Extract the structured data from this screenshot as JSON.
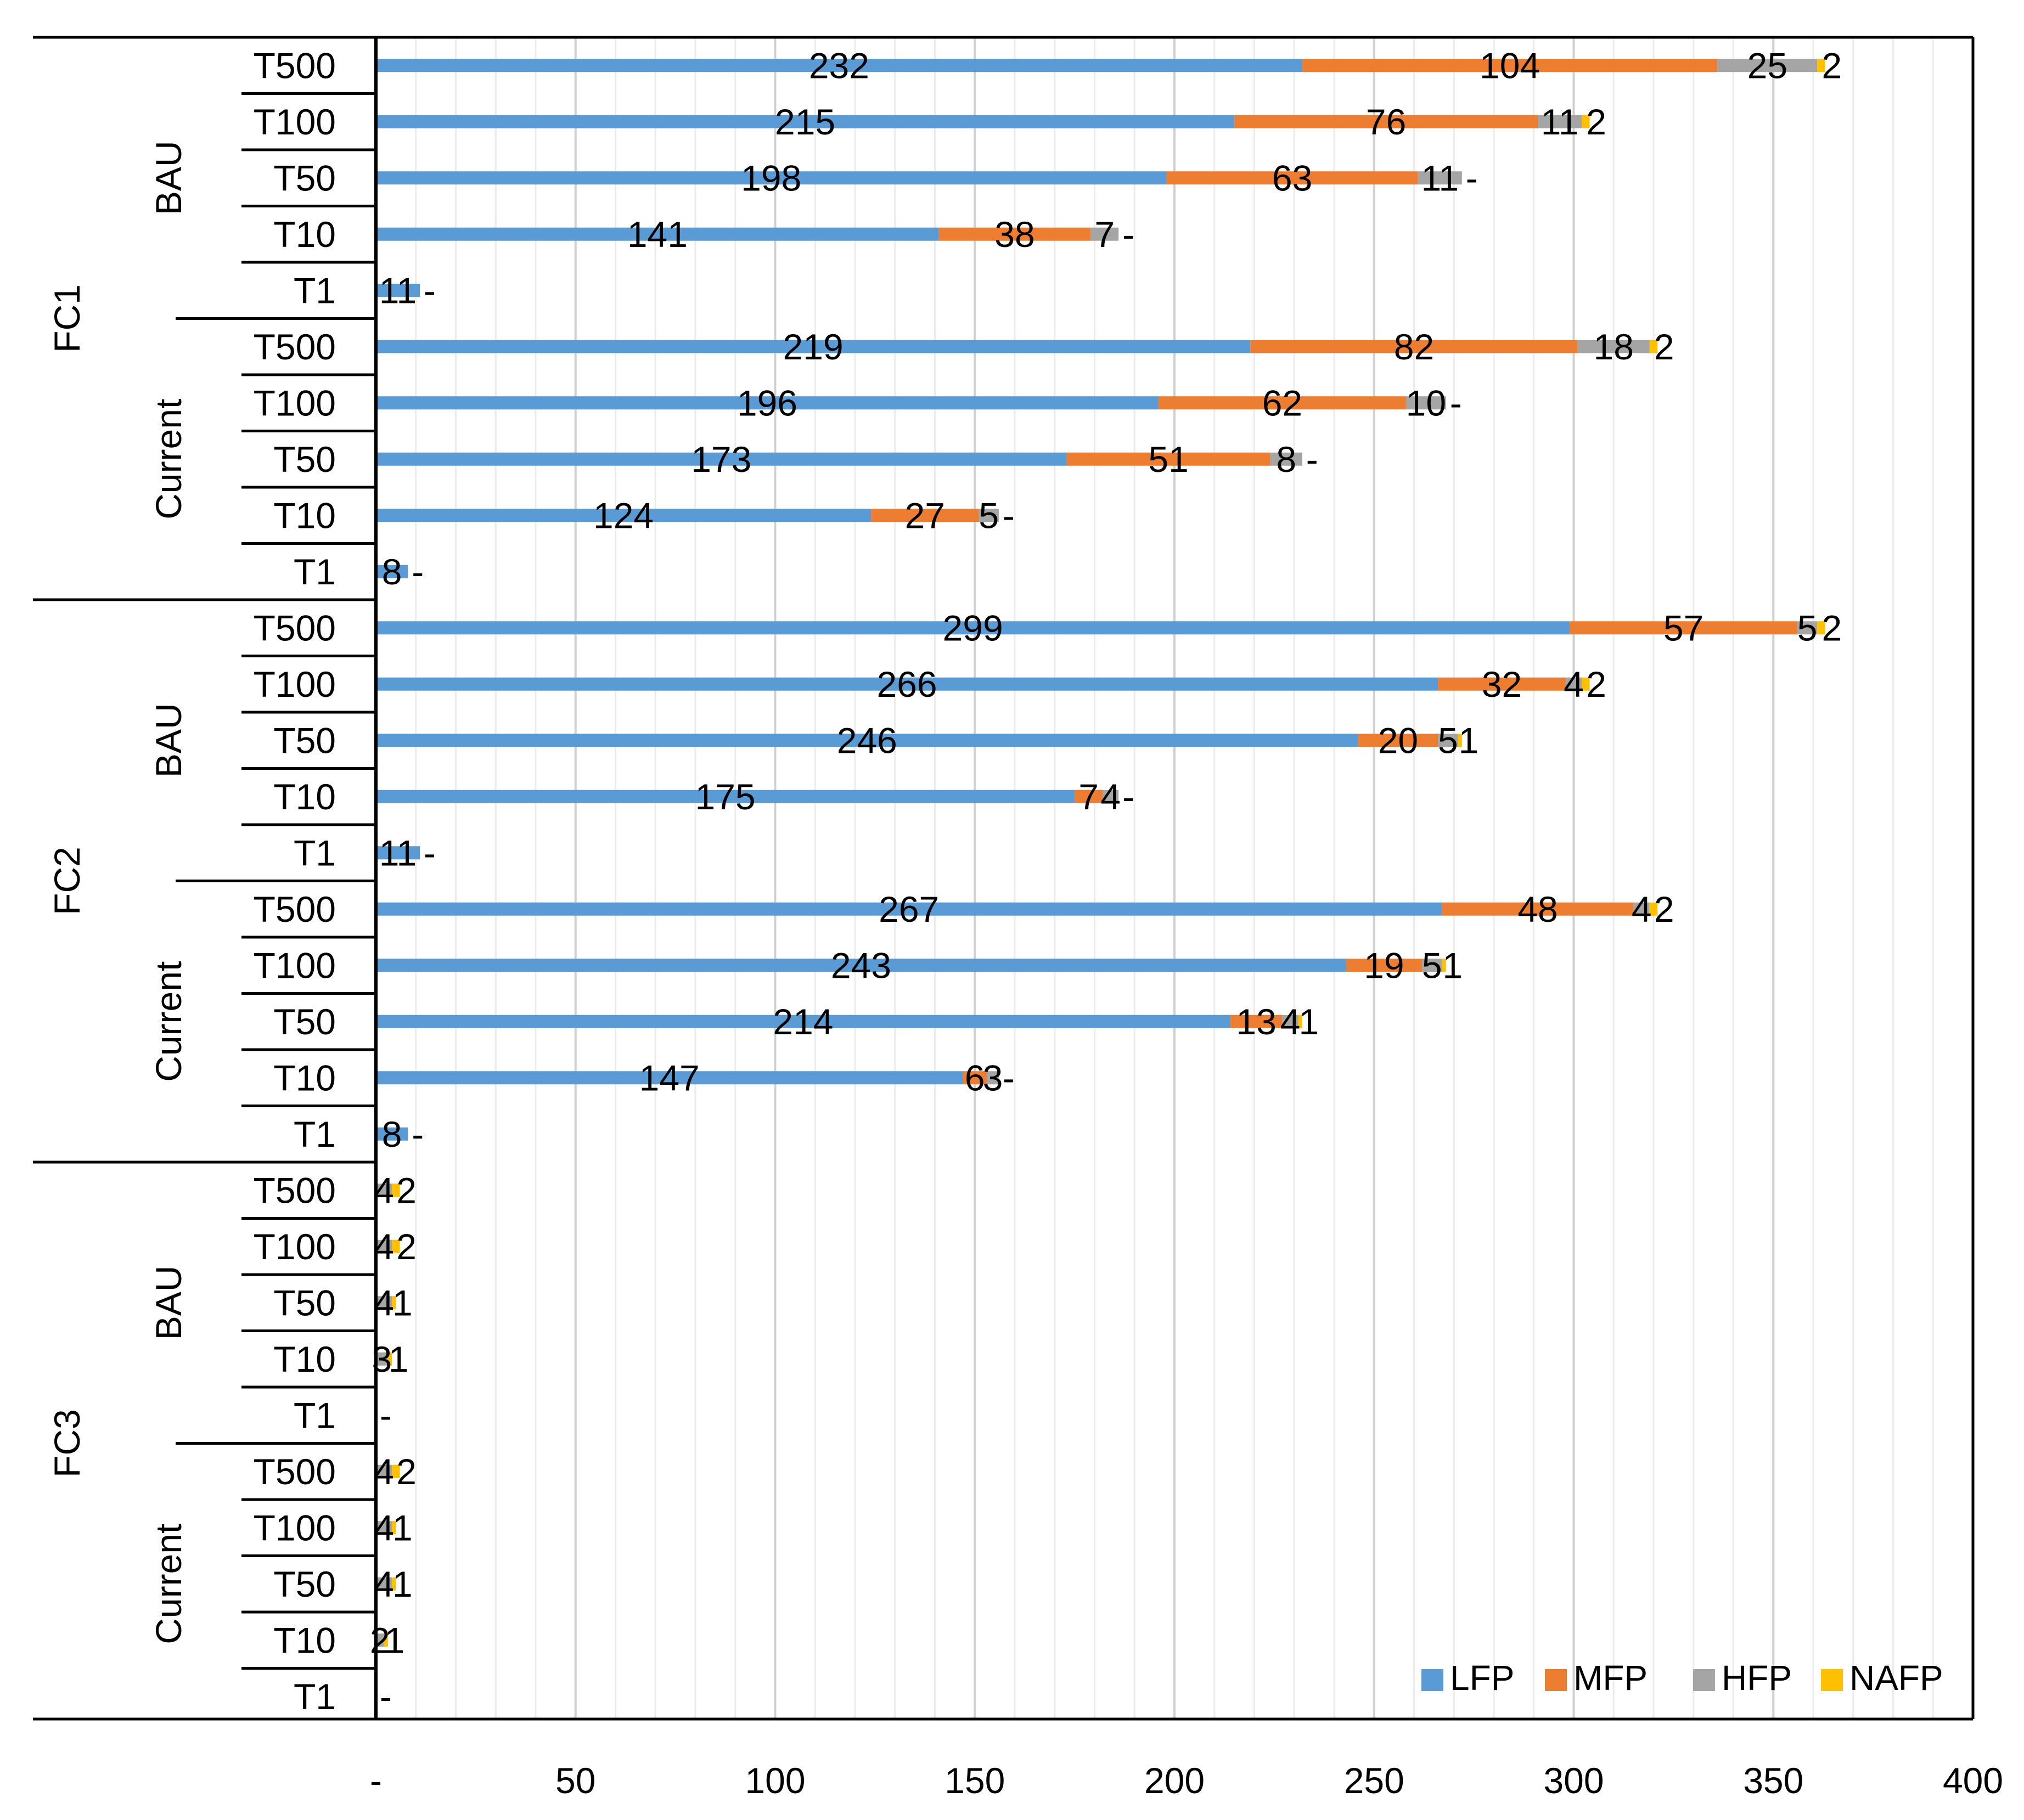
{
  "chart_data": {
    "type": "bar",
    "orientation": "horizontal",
    "stacked": true,
    "title": "",
    "xlabel": "",
    "ylabel": "",
    "xlim": [
      0,
      400
    ],
    "x_ticks": [
      "-",
      "50",
      "100",
      "150",
      "200",
      "250",
      "300",
      "350",
      "400"
    ],
    "x_tick_values": [
      0,
      50,
      100,
      150,
      200,
      250,
      300,
      350,
      400
    ],
    "grid": "vertical",
    "legend_position": "bottom-right",
    "series": [
      {
        "name": "LFP",
        "color": "#5B9BD5"
      },
      {
        "name": "MFP",
        "color": "#ED7D31"
      },
      {
        "name": "HFP",
        "color": "#A5A5A5"
      },
      {
        "name": "NAFP",
        "color": "#FFC000"
      }
    ],
    "groups": [
      {
        "name": "FC1",
        "subgroups": [
          {
            "name": "BAU",
            "rows": [
              {
                "label": "T500",
                "values": [
                  232,
                  104,
                  25,
                  2
                ],
                "labels": [
                  "232",
                  "104",
                  "25",
                  "2"
                ]
              },
              {
                "label": "T100",
                "values": [
                  215,
                  76,
                  11,
                  2
                ],
                "labels": [
                  "215",
                  "76",
                  "11",
                  "2"
                ]
              },
              {
                "label": "T50",
                "values": [
                  198,
                  63,
                  11,
                  0
                ],
                "labels": [
                  "198",
                  "63",
                  "11",
                  "-"
                ]
              },
              {
                "label": "T10",
                "values": [
                  141,
                  38,
                  7,
                  0
                ],
                "labels": [
                  "141",
                  "38",
                  "7",
                  "-"
                ]
              },
              {
                "label": "T1",
                "values": [
                  11,
                  0,
                  0,
                  0
                ],
                "labels": [
                  "11",
                  "",
                  "",
                  "-"
                ]
              }
            ]
          },
          {
            "name": "Current",
            "rows": [
              {
                "label": "T500",
                "values": [
                  219,
                  82,
                  18,
                  2
                ],
                "labels": [
                  "219",
                  "82",
                  "18",
                  "2"
                ]
              },
              {
                "label": "T100",
                "values": [
                  196,
                  62,
                  10,
                  0
                ],
                "labels": [
                  "196",
                  "62",
                  "10",
                  "-"
                ]
              },
              {
                "label": "T50",
                "values": [
                  173,
                  51,
                  8,
                  0
                ],
                "labels": [
                  "173",
                  "51",
                  "8",
                  "-"
                ]
              },
              {
                "label": "T10",
                "values": [
                  124,
                  27,
                  5,
                  0
                ],
                "labels": [
                  "124",
                  "27",
                  "5",
                  "-"
                ]
              },
              {
                "label": "T1",
                "values": [
                  8,
                  0,
                  0,
                  0
                ],
                "labels": [
                  "8",
                  "",
                  "",
                  "-"
                ]
              }
            ]
          }
        ]
      },
      {
        "name": "FC2",
        "subgroups": [
          {
            "name": "BAU",
            "rows": [
              {
                "label": "T500",
                "values": [
                  299,
                  57,
                  5,
                  2
                ],
                "labels": [
                  "299",
                  "57",
                  "5",
                  "2"
                ]
              },
              {
                "label": "T100",
                "values": [
                  266,
                  32,
                  4,
                  2
                ],
                "labels": [
                  "266",
                  "32",
                  "4",
                  "2"
                ]
              },
              {
                "label": "T50",
                "values": [
                  246,
                  20,
                  5,
                  1
                ],
                "labels": [
                  "246",
                  "20",
                  "5",
                  "1"
                ]
              },
              {
                "label": "T10",
                "values": [
                  175,
                  7,
                  4,
                  0
                ],
                "labels": [
                  "175",
                  "7",
                  "4",
                  "-"
                ]
              },
              {
                "label": "T1",
                "values": [
                  11,
                  0,
                  0,
                  0
                ],
                "labels": [
                  "11",
                  "",
                  "",
                  "-"
                ]
              }
            ]
          },
          {
            "name": "Current",
            "rows": [
              {
                "label": "T500",
                "values": [
                  267,
                  48,
                  4,
                  2
                ],
                "labels": [
                  "267",
                  "48",
                  "4",
                  "2"
                ]
              },
              {
                "label": "T100",
                "values": [
                  243,
                  19,
                  5,
                  1
                ],
                "labels": [
                  "243",
                  "19",
                  "5",
                  "1"
                ]
              },
              {
                "label": "T50",
                "values": [
                  214,
                  13,
                  4,
                  1
                ],
                "labels": [
                  "214",
                  "13",
                  "4",
                  "1"
                ]
              },
              {
                "label": "T10",
                "values": [
                  147,
                  6,
                  3,
                  0
                ],
                "labels": [
                  "147",
                  "6",
                  "3",
                  "-"
                ]
              },
              {
                "label": "T1",
                "values": [
                  8,
                  0,
                  0,
                  0
                ],
                "labels": [
                  "8",
                  "",
                  "",
                  "-"
                ]
              }
            ]
          }
        ]
      },
      {
        "name": "FC3",
        "subgroups": [
          {
            "name": "BAU",
            "rows": [
              {
                "label": "T500",
                "values": [
                  0,
                  0,
                  4,
                  2
                ],
                "labels": [
                  "",
                  "",
                  "4",
                  "2"
                ]
              },
              {
                "label": "T100",
                "values": [
                  0,
                  0,
                  4,
                  2
                ],
                "labels": [
                  "",
                  "",
                  "4",
                  "2"
                ]
              },
              {
                "label": "T50",
                "values": [
                  0,
                  0,
                  4,
                  1
                ],
                "labels": [
                  "",
                  "",
                  "4",
                  "1"
                ]
              },
              {
                "label": "T10",
                "values": [
                  0,
                  0,
                  3,
                  1
                ],
                "labels": [
                  "",
                  "",
                  "3",
                  "1"
                ]
              },
              {
                "label": "T1",
                "values": [
                  0,
                  0,
                  0,
                  0
                ],
                "labels": [
                  "",
                  "",
                  "",
                  "-"
                ]
              }
            ]
          },
          {
            "name": "Current",
            "rows": [
              {
                "label": "T500",
                "values": [
                  0,
                  0,
                  4,
                  2
                ],
                "labels": [
                  "",
                  "",
                  "4",
                  "2"
                ]
              },
              {
                "label": "T100",
                "values": [
                  0,
                  0,
                  4,
                  1
                ],
                "labels": [
                  "",
                  "",
                  "4",
                  "1"
                ]
              },
              {
                "label": "T50",
                "values": [
                  0,
                  0,
                  4,
                  1
                ],
                "labels": [
                  "",
                  "",
                  "4",
                  "1"
                ]
              },
              {
                "label": "T10",
                "values": [
                  0,
                  0,
                  2,
                  1
                ],
                "labels": [
                  "",
                  "",
                  "2",
                  "1"
                ]
              },
              {
                "label": "T1",
                "values": [
                  0,
                  0,
                  0,
                  0
                ],
                "labels": [
                  "",
                  "",
                  "",
                  "-"
                ]
              }
            ]
          }
        ]
      }
    ]
  }
}
